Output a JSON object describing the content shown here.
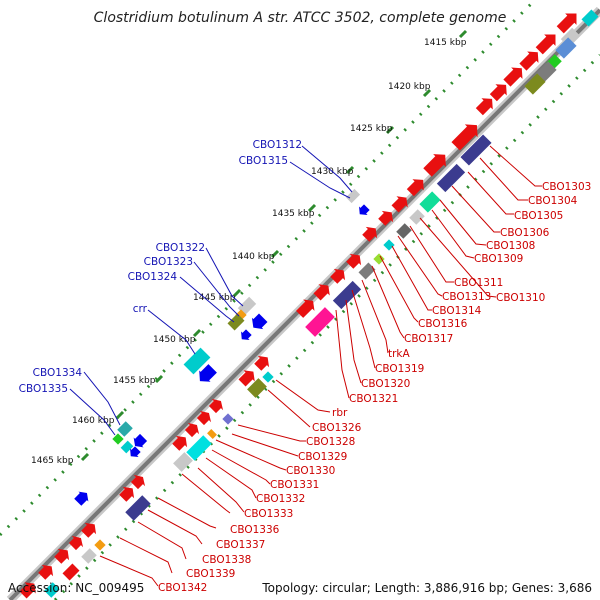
{
  "title": "Clostridium botulinum A str. ATCC 3502, complete genome",
  "footer": {
    "accession": "Accession: NC_009495",
    "summary": "Topology: circular; Length: 3,886,916 bp; Genes: 3,686"
  },
  "ticks": [
    "1415 kbp",
    "1420 kbp",
    "1425 kbp",
    "1430 kbp",
    "1435 kbp",
    "1440 kbp",
    "1445 kbp",
    "1450 kbp",
    "1455 kbp",
    "1460 kbp",
    "1465 kbp"
  ],
  "outer_labels": [
    "CBO1312",
    "CBO1315",
    "CBO1322",
    "CBO1323",
    "CBO1324",
    "crr",
    "CBO1334",
    "CBO1335"
  ],
  "inner_labels": [
    "CBO1303",
    "CBO1304",
    "CBO1305",
    "CBO1306",
    "CBO1308",
    "CBO1309",
    "CBO1310",
    "CBO1311",
    "CBO1313",
    "CBO1314",
    "CBO1316",
    "CBO1317",
    "trkA",
    "CBO1319",
    "CBO1320",
    "CBO1321",
    "rbr",
    "CBO1326",
    "CBO1328",
    "CBO1329",
    "CBO1330",
    "CBO1331",
    "CBO1332",
    "CBO1333",
    "CBO1336",
    "CBO1337",
    "CBO1338",
    "CBO1339",
    "CBO1342"
  ],
  "colors": {
    "backbone": "#808080",
    "tick": "#2e8b2e",
    "outer_label": "#1414b4",
    "inner_label": "#cc0000",
    "cds": "#ee1111",
    "regulatory": "#0000ee",
    "metabolic": "#3b3b8f",
    "transport": "#00cccc",
    "other": "#bdbdbd"
  }
}
